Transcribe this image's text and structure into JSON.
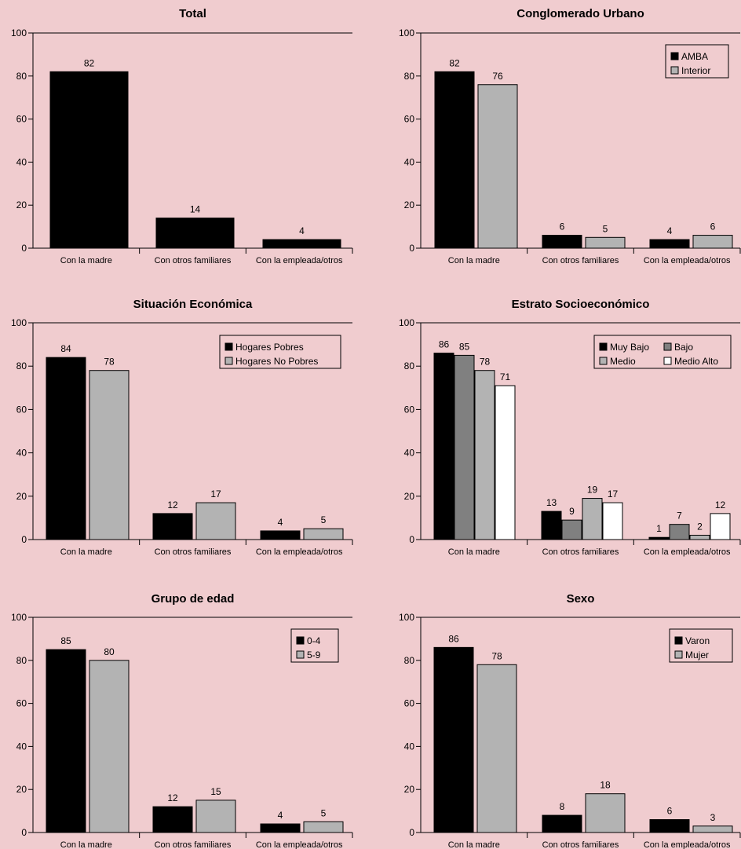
{
  "colors": {
    "background": "#f0cccf",
    "black": "#000000",
    "gray_light": "#b3b3b3",
    "gray_dark": "#808080",
    "white": "#ffffff"
  },
  "chart_data": [
    {
      "type": "bar",
      "title": "Total",
      "categories": [
        "Con la madre",
        "Con otros familiares",
        "Con la empleada/otros"
      ],
      "series": [
        {
          "values": [
            82,
            14,
            4
          ],
          "color": "#000000"
        }
      ],
      "ylim": [
        0,
        100
      ],
      "yticks": [
        0,
        20,
        40,
        60,
        80,
        100
      ],
      "legend": null
    },
    {
      "type": "bar",
      "title": "Conglomerado Urbano",
      "categories": [
        "Con la madre",
        "Con otros familiares",
        "Con la empleada/otros"
      ],
      "series": [
        {
          "name": "AMBA",
          "values": [
            82,
            6,
            4
          ],
          "color": "#000000"
        },
        {
          "name": "Interior",
          "values": [
            76,
            5,
            6
          ],
          "color": "#b3b3b3"
        }
      ],
      "ylim": [
        0,
        100
      ],
      "yticks": [
        0,
        20,
        40,
        60,
        80,
        100
      ],
      "legend": "top-right"
    },
    {
      "type": "bar",
      "title": "Situación Económica",
      "categories": [
        "Con la madre",
        "Con otros familiares",
        "Con la empleada/otros"
      ],
      "series": [
        {
          "name": "Hogares Pobres",
          "values": [
            84,
            12,
            4
          ],
          "color": "#000000"
        },
        {
          "name": "Hogares No Pobres",
          "values": [
            78,
            17,
            5
          ],
          "color": "#b3b3b3"
        }
      ],
      "ylim": [
        0,
        100
      ],
      "yticks": [
        0,
        20,
        40,
        60,
        80,
        100
      ],
      "legend": "top-right"
    },
    {
      "type": "bar",
      "title": "Estrato Socioeconómico",
      "categories": [
        "Con la madre",
        "Con otros familiares",
        "Con la empleada/otros"
      ],
      "series": [
        {
          "name": "Muy Bajo",
          "values": [
            86,
            13,
            1
          ],
          "color": "#000000"
        },
        {
          "name": "Bajo",
          "values": [
            85,
            9,
            7
          ],
          "color": "#808080"
        },
        {
          "name": "Medio",
          "values": [
            78,
            19,
            2
          ],
          "color": "#b3b3b3"
        },
        {
          "name": "Medio Alto",
          "values": [
            71,
            17,
            12
          ],
          "color": "#ffffff"
        }
      ],
      "ylim": [
        0,
        100
      ],
      "yticks": [
        0,
        20,
        40,
        60,
        80,
        100
      ],
      "legend": "top-right"
    },
    {
      "type": "bar",
      "title": "Grupo de edad",
      "categories": [
        "Con la madre",
        "Con otros familiares",
        "Con la empleada/otros"
      ],
      "series": [
        {
          "name": "0-4",
          "values": [
            85,
            12,
            4
          ],
          "color": "#000000"
        },
        {
          "name": "5-9",
          "values": [
            80,
            15,
            5
          ],
          "color": "#b3b3b3"
        }
      ],
      "ylim": [
        0,
        100
      ],
      "yticks": [
        0,
        20,
        40,
        60,
        80,
        100
      ],
      "legend": "top-right"
    },
    {
      "type": "bar",
      "title": "Sexo",
      "categories": [
        "Con la madre",
        "Con otros familiares",
        "Con la empleada/otros"
      ],
      "series": [
        {
          "name": "Varon",
          "values": [
            86,
            8,
            6
          ],
          "color": "#000000"
        },
        {
          "name": "Mujer",
          "values": [
            78,
            18,
            3
          ],
          "color": "#b3b3b3"
        }
      ],
      "ylim": [
        0,
        100
      ],
      "yticks": [
        0,
        20,
        40,
        60,
        80,
        100
      ],
      "legend": "top-right"
    }
  ]
}
